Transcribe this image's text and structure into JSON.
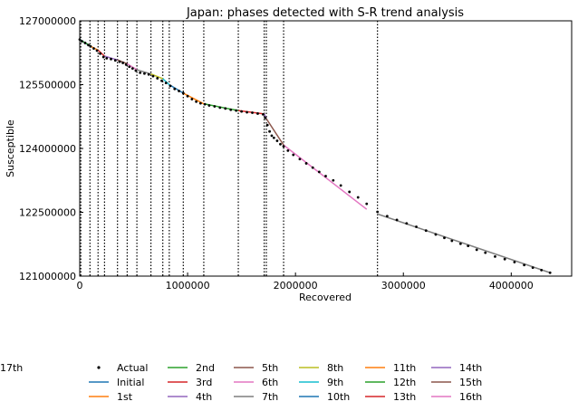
{
  "chart_data": {
    "type": "scatter",
    "title": "Japan: phases detected with S-R trend analysis",
    "xlabel": "Recovered",
    "ylabel": "Susceptible",
    "xlim": [
      0,
      4560000
    ],
    "ylim": [
      121000000,
      127000000
    ],
    "xticks": [
      0,
      1000000,
      2000000,
      3000000,
      4000000
    ],
    "xtick_labels": [
      "0",
      "1000000",
      "2000000",
      "3000000",
      "4000000"
    ],
    "yticks": [
      121000000,
      122500000,
      124000000,
      125500000,
      127000000
    ],
    "ytick_labels": [
      "121000000",
      "122500000",
      "124000000",
      "125500000",
      "127000000"
    ],
    "grid": false,
    "legend_position": "bottom",
    "change_points": [
      10000,
      95000,
      170000,
      230000,
      350000,
      440000,
      530000,
      660000,
      770000,
      830000,
      960000,
      1150000,
      1470000,
      1710000,
      1730000,
      1890000,
      2760000
    ],
    "actual": {
      "name": "Actual",
      "color": "#000000",
      "x": [
        0,
        20000,
        50000,
        80000,
        100000,
        130000,
        160000,
        190000,
        220000,
        250000,
        290000,
        330000,
        370000,
        400000,
        430000,
        460000,
        490000,
        520000,
        560000,
        600000,
        640000,
        680000,
        720000,
        760000,
        800000,
        840000,
        880000,
        920000,
        960000,
        1000000,
        1040000,
        1080000,
        1120000,
        1160000,
        1200000,
        1250000,
        1300000,
        1350000,
        1400000,
        1450000,
        1500000,
        1550000,
        1600000,
        1650000,
        1700000,
        1720000,
        1740000,
        1760000,
        1780000,
        1800000,
        1830000,
        1860000,
        1890000,
        1930000,
        1980000,
        2040000,
        2100000,
        2160000,
        2220000,
        2280000,
        2350000,
        2420000,
        2500000,
        2580000,
        2660000,
        2760000,
        2850000,
        2940000,
        3030000,
        3120000,
        3210000,
        3300000,
        3380000,
        3450000,
        3530000,
        3600000,
        3680000,
        3760000,
        3850000,
        3940000,
        4030000,
        4120000,
        4200000,
        4280000,
        4360000
      ],
      "y": [
        126560000,
        126520000,
        126480000,
        126430000,
        126400000,
        126350000,
        126300000,
        126230000,
        126150000,
        126120000,
        126100000,
        126070000,
        126040000,
        126010000,
        125970000,
        125920000,
        125880000,
        125830000,
        125780000,
        125760000,
        125740000,
        125700000,
        125650000,
        125590000,
        125540000,
        125470000,
        125400000,
        125350000,
        125300000,
        125230000,
        125160000,
        125100000,
        125060000,
        125040000,
        125010000,
        124990000,
        124960000,
        124940000,
        124910000,
        124890000,
        124870000,
        124850000,
        124840000,
        124820000,
        124800000,
        124720000,
        124550000,
        124400000,
        124300000,
        124250000,
        124180000,
        124100000,
        124050000,
        123950000,
        123850000,
        123750000,
        123650000,
        123550000,
        123450000,
        123350000,
        123250000,
        123130000,
        122980000,
        122850000,
        122700000,
        122510000,
        122410000,
        122320000,
        122240000,
        122160000,
        122070000,
        121980000,
        121900000,
        121830000,
        121760000,
        121710000,
        121620000,
        121550000,
        121460000,
        121400000,
        121330000,
        121260000,
        121200000,
        121140000,
        121080000
      ]
    },
    "series": [
      {
        "name": "Initial",
        "color": "#1f77b4",
        "x": [
          0,
          95000
        ],
        "y": [
          126560000,
          126410000
        ]
      },
      {
        "name": "1st",
        "color": "#ff7f0e",
        "x": [
          95000,
          170000
        ],
        "y": [
          126410000,
          126310000
        ]
      },
      {
        "name": "2nd",
        "color": "#2ca02c",
        "x": [
          10000,
          95000
        ],
        "y": [
          126540000,
          126420000
        ]
      },
      {
        "name": "3rd",
        "color": "#d62728",
        "x": [
          170000,
          230000
        ],
        "y": [
          126310000,
          126170000
        ]
      },
      {
        "name": "4th",
        "color": "#9467bd",
        "x": [
          230000,
          350000
        ],
        "y": [
          126170000,
          126080000
        ]
      },
      {
        "name": "5th",
        "color": "#8c564b",
        "x": [
          350000,
          440000
        ],
        "y": [
          126080000,
          125990000
        ]
      },
      {
        "name": "6th",
        "color": "#e377c2",
        "x": [
          440000,
          530000
        ],
        "y": [
          125990000,
          125850000
        ]
      },
      {
        "name": "7th",
        "color": "#7f7f7f",
        "x": [
          530000,
          660000
        ],
        "y": [
          125850000,
          125750000
        ]
      },
      {
        "name": "8th",
        "color": "#bcbd22",
        "x": [
          660000,
          770000
        ],
        "y": [
          125750000,
          125640000
        ]
      },
      {
        "name": "9th",
        "color": "#17becf",
        "x": [
          770000,
          830000
        ],
        "y": [
          125640000,
          125500000
        ]
      },
      {
        "name": "10th",
        "color": "#1f77b4",
        "x": [
          830000,
          960000
        ],
        "y": [
          125500000,
          125300000
        ]
      },
      {
        "name": "11th",
        "color": "#ff7f0e",
        "x": [
          960000,
          1150000
        ],
        "y": [
          125300000,
          125050000
        ]
      },
      {
        "name": "12th",
        "color": "#2ca02c",
        "x": [
          1150000,
          1470000
        ],
        "y": [
          125050000,
          124890000
        ]
      },
      {
        "name": "13th",
        "color": "#d62728",
        "x": [
          1470000,
          1710000
        ],
        "y": [
          124890000,
          124810000
        ]
      },
      {
        "name": "14th",
        "color": "#9467bd",
        "x": [
          1710000,
          1730000
        ],
        "y": [
          124810000,
          124700000
        ]
      },
      {
        "name": "15th",
        "color": "#8c564b",
        "x": [
          1730000,
          1890000
        ],
        "y": [
          124700000,
          124080000
        ]
      },
      {
        "name": "16th",
        "color": "#e377c2",
        "x": [
          1890000,
          2660000
        ],
        "y": [
          124080000,
          122570000
        ]
      },
      {
        "name": "17th",
        "color": "#7f7f7f",
        "x": [
          2760000,
          4360000
        ],
        "y": [
          122460000,
          121080000
        ]
      }
    ]
  }
}
